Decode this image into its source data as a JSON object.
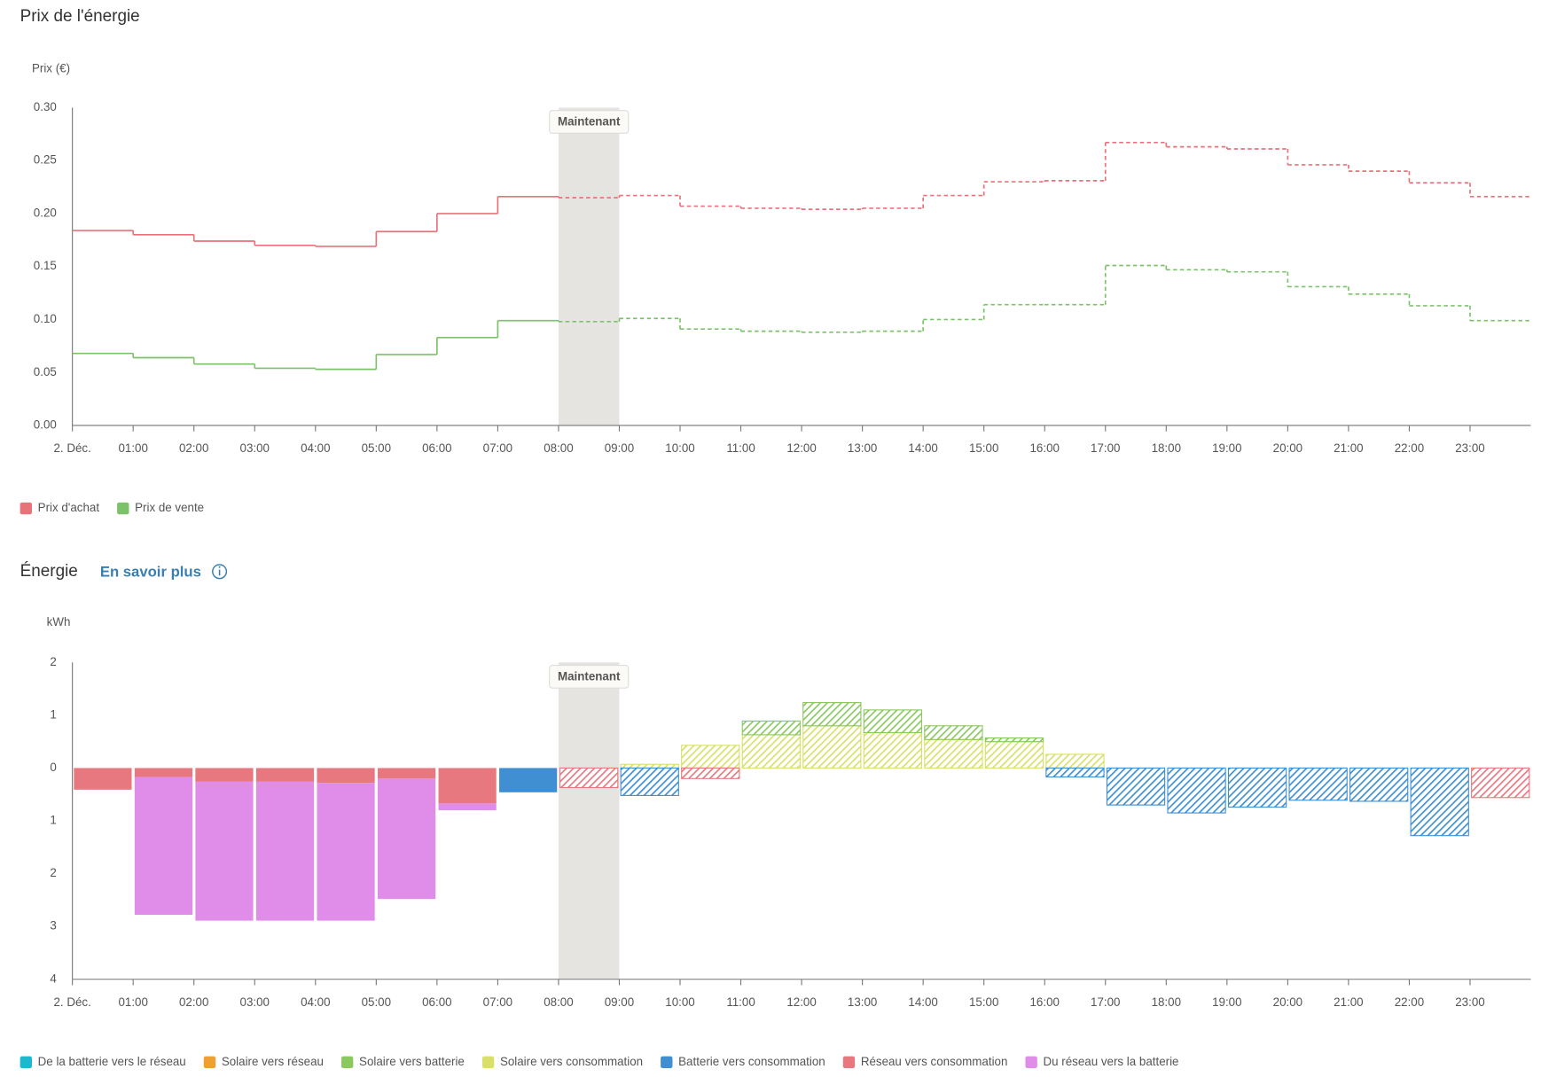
{
  "chart_data": [
    {
      "type": "step-line",
      "title": "Prix de l'énergie",
      "ylabel": "Prix (€)",
      "categories": [
        "2. Déc.",
        "01:00",
        "02:00",
        "03:00",
        "04:00",
        "05:00",
        "06:00",
        "07:00",
        "08:00",
        "09:00",
        "10:00",
        "11:00",
        "12:00",
        "13:00",
        "14:00",
        "15:00",
        "16:00",
        "17:00",
        "18:00",
        "19:00",
        "20:00",
        "21:00",
        "22:00",
        "23:00"
      ],
      "now": "08:00",
      "now_label": "Maintenant",
      "series": [
        {
          "name": "Prix d'achat",
          "color": "#e8727a",
          "values": [
            0.184,
            0.18,
            0.174,
            0.17,
            0.169,
            0.183,
            0.2,
            0.216,
            0.215,
            0.217,
            0.207,
            0.205,
            0.204,
            0.205,
            0.217,
            0.23,
            0.231,
            0.267,
            0.263,
            0.261,
            0.246,
            0.24,
            0.229,
            0.216
          ]
        },
        {
          "name": "Prix de vente",
          "color": "#7cc26a",
          "values": [
            0.068,
            0.064,
            0.058,
            0.054,
            0.053,
            0.067,
            0.083,
            0.099,
            0.098,
            0.101,
            0.091,
            0.089,
            0.088,
            0.089,
            0.1,
            0.114,
            0.114,
            0.151,
            0.147,
            0.145,
            0.131,
            0.124,
            0.113,
            0.099
          ]
        }
      ],
      "ylim": [
        0,
        0.3
      ],
      "yticks": [
        {
          "value": 0,
          "label": "0.00"
        },
        {
          "value": 0.05,
          "label": "0.05"
        },
        {
          "value": 0.1,
          "label": "0.10"
        },
        {
          "value": 0.15,
          "label": "0.15"
        },
        {
          "value": 0.2,
          "label": "0.20"
        },
        {
          "value": 0.25,
          "label": "0.25"
        },
        {
          "value": 0.3,
          "label": "0.30"
        }
      ],
      "grid": false
    },
    {
      "type": "stacked-bar",
      "title": "Énergie",
      "link": "En savoir plus",
      "ylabel": "kWh",
      "categories": [
        "2. Déc.",
        "01:00",
        "02:00",
        "03:00",
        "04:00",
        "05:00",
        "06:00",
        "07:00",
        "08:00",
        "09:00",
        "10:00",
        "11:00",
        "12:00",
        "13:00",
        "14:00",
        "15:00",
        "16:00",
        "17:00",
        "18:00",
        "19:00",
        "20:00",
        "21:00",
        "22:00",
        "23:00"
      ],
      "now": "08:00",
      "now_label": "Maintenant",
      "series": [
        {
          "name": "De la batterie vers le réseau",
          "color": "#1bb8d0",
          "values": [
            null,
            null,
            null,
            null,
            null,
            null,
            null,
            null,
            null,
            null,
            null,
            null,
            null,
            null,
            null,
            null,
            null,
            null,
            null,
            null,
            null,
            null,
            null,
            null
          ]
        },
        {
          "name": "Solaire vers réseau",
          "color": "#f0a030",
          "values": [
            null,
            null,
            null,
            null,
            null,
            null,
            null,
            null,
            null,
            null,
            null,
            null,
            null,
            null,
            null,
            null,
            null,
            null,
            null,
            null,
            null,
            null,
            null,
            null
          ]
        },
        {
          "name": "Solaire vers batterie",
          "color": "#8bc860",
          "values": [
            null,
            null,
            null,
            null,
            null,
            null,
            null,
            null,
            null,
            null,
            null,
            0.26,
            0.44,
            0.43,
            0.26,
            0.07,
            null,
            null,
            null,
            null,
            null,
            null,
            null,
            null
          ]
        },
        {
          "name": "Solaire vers consommation",
          "color": "#d8e06a",
          "values": [
            null,
            null,
            null,
            null,
            null,
            null,
            null,
            null,
            null,
            0.07,
            0.43,
            0.63,
            0.8,
            0.67,
            0.54,
            0.5,
            0.26,
            null,
            null,
            null,
            null,
            null,
            null,
            null
          ]
        },
        {
          "name": "Batterie vers consommation",
          "color": "#3f8fd2",
          "values": [
            null,
            null,
            null,
            null,
            null,
            null,
            null,
            -0.46,
            null,
            -0.52,
            null,
            null,
            null,
            null,
            null,
            null,
            -0.17,
            -0.7,
            -0.85,
            -0.74,
            -0.61,
            -0.63,
            -1.28,
            null
          ]
        },
        {
          "name": "Réseau vers consommation",
          "color": "#e87880",
          "values": [
            -0.41,
            -0.17,
            -0.26,
            -0.26,
            -0.28,
            -0.2,
            -0.67,
            null,
            -0.37,
            null,
            -0.2,
            null,
            null,
            null,
            null,
            null,
            null,
            null,
            null,
            null,
            null,
            null,
            null,
            -0.56
          ]
        },
        {
          "name": "Du réseau vers la batterie",
          "color": "#df8de8",
          "values": [
            null,
            -2.61,
            -2.63,
            -2.63,
            -2.61,
            -2.28,
            -0.13,
            null,
            null,
            null,
            null,
            null,
            null,
            null,
            null,
            null,
            null,
            null,
            null,
            null,
            null,
            null,
            null,
            null
          ]
        }
      ],
      "ylim": [
        -4,
        2
      ],
      "yticks": [
        2,
        1,
        0,
        {
          "value": -1,
          "label": "1"
        },
        {
          "value": -2,
          "label": "2"
        },
        {
          "value": -3,
          "label": "3"
        },
        {
          "value": -4,
          "label": "4"
        }
      ],
      "grid": false
    }
  ]
}
